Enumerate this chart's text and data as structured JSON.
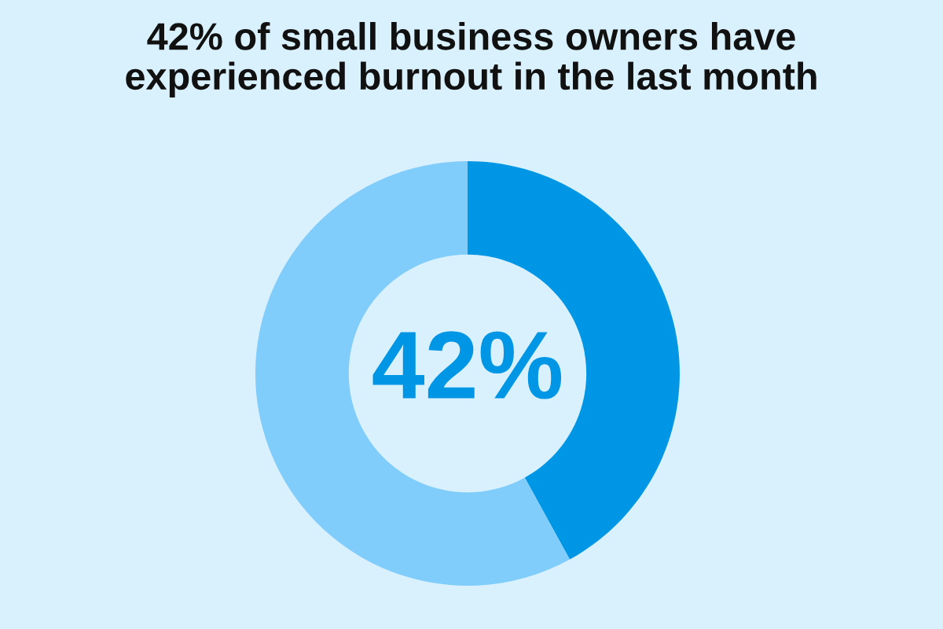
{
  "chart_data": {
    "type": "donut",
    "title": "42% of small business owners have experienced burnout in the last month",
    "categories": [
      null,
      null
    ],
    "values": [
      42,
      58
    ],
    "colors": [
      "#0096e6",
      "#80ccfa"
    ],
    "annotations": [
      "42%"
    ]
  }
}
